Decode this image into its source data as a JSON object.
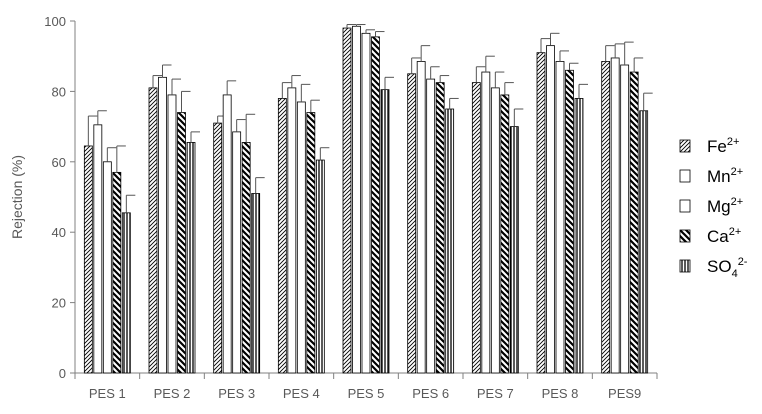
{
  "chart_data": {
    "type": "bar",
    "categories": [
      "PES 1",
      "PES 2",
      "PES 3",
      "PES 4",
      "PES 5",
      "PES 6",
      "PES 7",
      "PES 8",
      "PES9"
    ],
    "ylabel": "Rejection (%)",
    "xlabel": "",
    "ylim": [
      0,
      100
    ],
    "yticks": [
      0,
      20,
      40,
      60,
      80,
      100
    ],
    "grid": false,
    "legend_position": "right",
    "series": [
      {
        "name": "Fe",
        "sup": "2+",
        "sub": "",
        "pattern": "diag-dense",
        "values": [
          64.5,
          81,
          71,
          78,
          98,
          85,
          82.5,
          91,
          88.5
        ],
        "errors": [
          8.5,
          3.5,
          2,
          4.5,
          1,
          4.5,
          4.5,
          4,
          4.5
        ]
      },
      {
        "name": "Mn",
        "sup": "2+",
        "sub": "",
        "pattern": "white",
        "values": [
          70.5,
          84,
          79,
          81,
          98.5,
          88.5,
          85.5,
          93,
          89.5
        ],
        "errors": [
          4,
          3.5,
          4,
          3.5,
          0.5,
          4.5,
          4.5,
          3.5,
          4
        ]
      },
      {
        "name": "Mg",
        "sup": "2+",
        "sub": "",
        "pattern": "white",
        "values": [
          60,
          79,
          68.5,
          77,
          96.5,
          83.5,
          81,
          88.5,
          87.5
        ],
        "errors": [
          4,
          4.5,
          3.5,
          5,
          1,
          3.5,
          4.5,
          3,
          6.5
        ]
      },
      {
        "name": "Ca",
        "sup": "2+",
        "sub": "",
        "pattern": "diag-bold",
        "values": [
          57,
          74,
          65.5,
          74,
          95.5,
          82.5,
          79,
          86,
          85.5
        ],
        "errors": [
          7.5,
          6,
          8,
          3.5,
          1.5,
          2,
          3.5,
          2,
          4
        ]
      },
      {
        "name": "SO",
        "sup": "2-",
        "sub": "4",
        "pattern": "vertical",
        "values": [
          45.5,
          65.5,
          51,
          60.5,
          80.5,
          75,
          70,
          78,
          74.5
        ],
        "errors": [
          5,
          3,
          4.5,
          3.5,
          3.5,
          3,
          5,
          4,
          5
        ]
      }
    ]
  }
}
